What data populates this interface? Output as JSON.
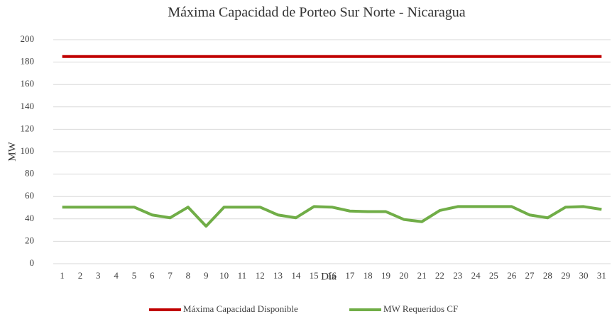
{
  "chart_data": {
    "type": "line",
    "title": "Máxima Capacidad de Porteo Sur Norte - Nicaragua",
    "x_label": "Día",
    "y_label": "MW",
    "categories": [
      "1",
      "2",
      "3",
      "4",
      "5",
      "6",
      "7",
      "8",
      "9",
      "10",
      "11",
      "12",
      "13",
      "14",
      "15",
      "16",
      "17",
      "18",
      "19",
      "20",
      "21",
      "22",
      "23",
      "24",
      "25",
      "26",
      "27",
      "28",
      "29",
      "30",
      "31"
    ],
    "series": [
      {
        "name": "Máxima Capacidad Disponible",
        "color": "#c00000",
        "values": [
          185,
          185,
          185,
          185,
          185,
          185,
          185,
          185,
          185,
          185,
          185,
          185,
          185,
          185,
          185,
          185,
          185,
          185,
          185,
          185,
          185,
          185,
          185,
          185,
          185,
          185,
          185,
          185,
          185,
          185,
          185
        ]
      },
      {
        "name": "MW Requeridos CF",
        "color": "#70ad47",
        "values": [
          50.5,
          50.5,
          50.5,
          50.5,
          50.5,
          43.5,
          41,
          50.5,
          33.5,
          50.5,
          50.5,
          50.5,
          43.5,
          41,
          51,
          50.5,
          47,
          46.5,
          46.5,
          39.5,
          37.5,
          47.5,
          51,
          51,
          51,
          51,
          43.5,
          41,
          50.5,
          51,
          48.5
        ]
      }
    ],
    "ylim": [
      0,
      200
    ],
    "yticks": [
      0,
      20,
      40,
      60,
      80,
      100,
      120,
      140,
      160,
      180,
      200
    ],
    "grid": true,
    "legend": "bottom"
  }
}
